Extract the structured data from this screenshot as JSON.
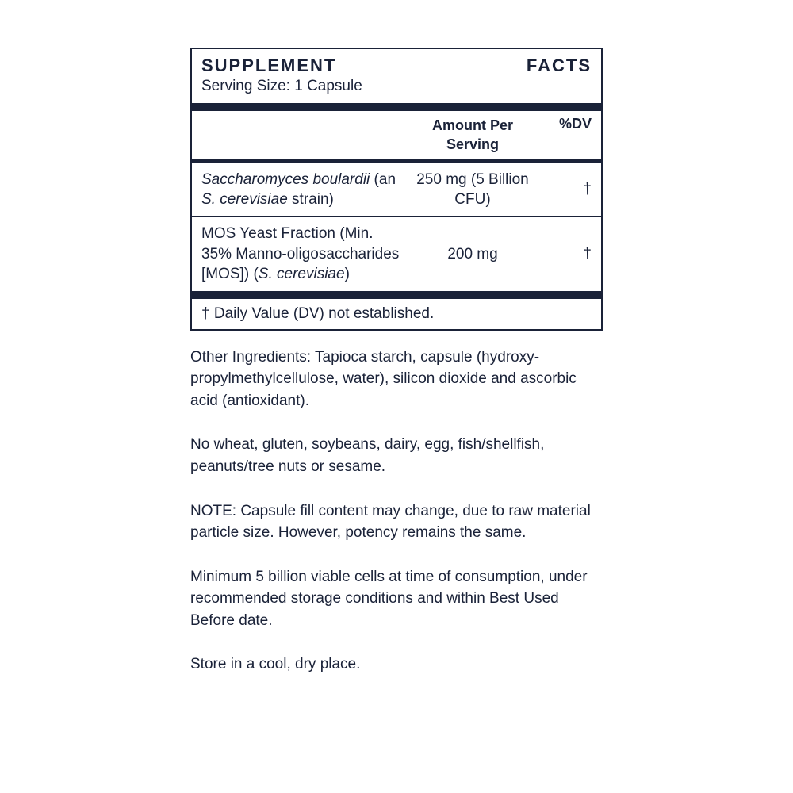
{
  "panel": {
    "title": "SUPPLEMENT FACTS",
    "serving": "Serving Size: 1 Capsule",
    "header_amount": "Amount Per Serving",
    "header_dv": "%DV",
    "rows": [
      {
        "name_ital1": "Saccharomyces boulardii",
        "name_plain1": " (an ",
        "name_ital2": "S. cerevisiae",
        "name_plain2": " strain)",
        "amount": "250 mg (5 Billion CFU)",
        "dv": "†"
      },
      {
        "name_plain_a": "MOS Yeast Fraction (Min. 35% Manno-oligosaccharides [MOS]) (",
        "name_ital_a": "S. cerevisiae",
        "name_plain_b": ")",
        "amount": "200 mg",
        "dv": "†"
      }
    ],
    "footnote": "† Daily Value (DV) not established."
  },
  "below": {
    "p1": "Other Ingredients: Tapioca starch, capsule (hydroxy-propylmethylcellulose, water), silicon dioxide and ascorbic acid (antioxidant).",
    "p2": "No wheat, gluten, soybeans, dairy, egg, fish/shellfish, peanuts/tree nuts or sesame.",
    "p3": "NOTE: Capsule fill content may change, due to raw material particle size. However, potency remains the same.",
    "p4": "Minimum 5 billion viable cells at time of consumption, under recommended storage conditions and within Best Used Before date.",
    "p5": "Store in a cool, dry place."
  },
  "colors": {
    "text": "#1a2238",
    "bg": "#ffffff"
  }
}
